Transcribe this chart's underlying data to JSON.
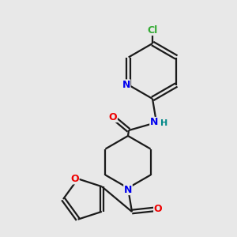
{
  "bg_color": "#e8e8e8",
  "bond_color": "#1a1a1a",
  "atom_colors": {
    "N": "#0000ee",
    "O": "#ee0000",
    "Cl": "#33aa33",
    "H": "#008888",
    "C": "#1a1a1a"
  },
  "figsize": [
    3.0,
    3.0
  ],
  "dpi": 100
}
